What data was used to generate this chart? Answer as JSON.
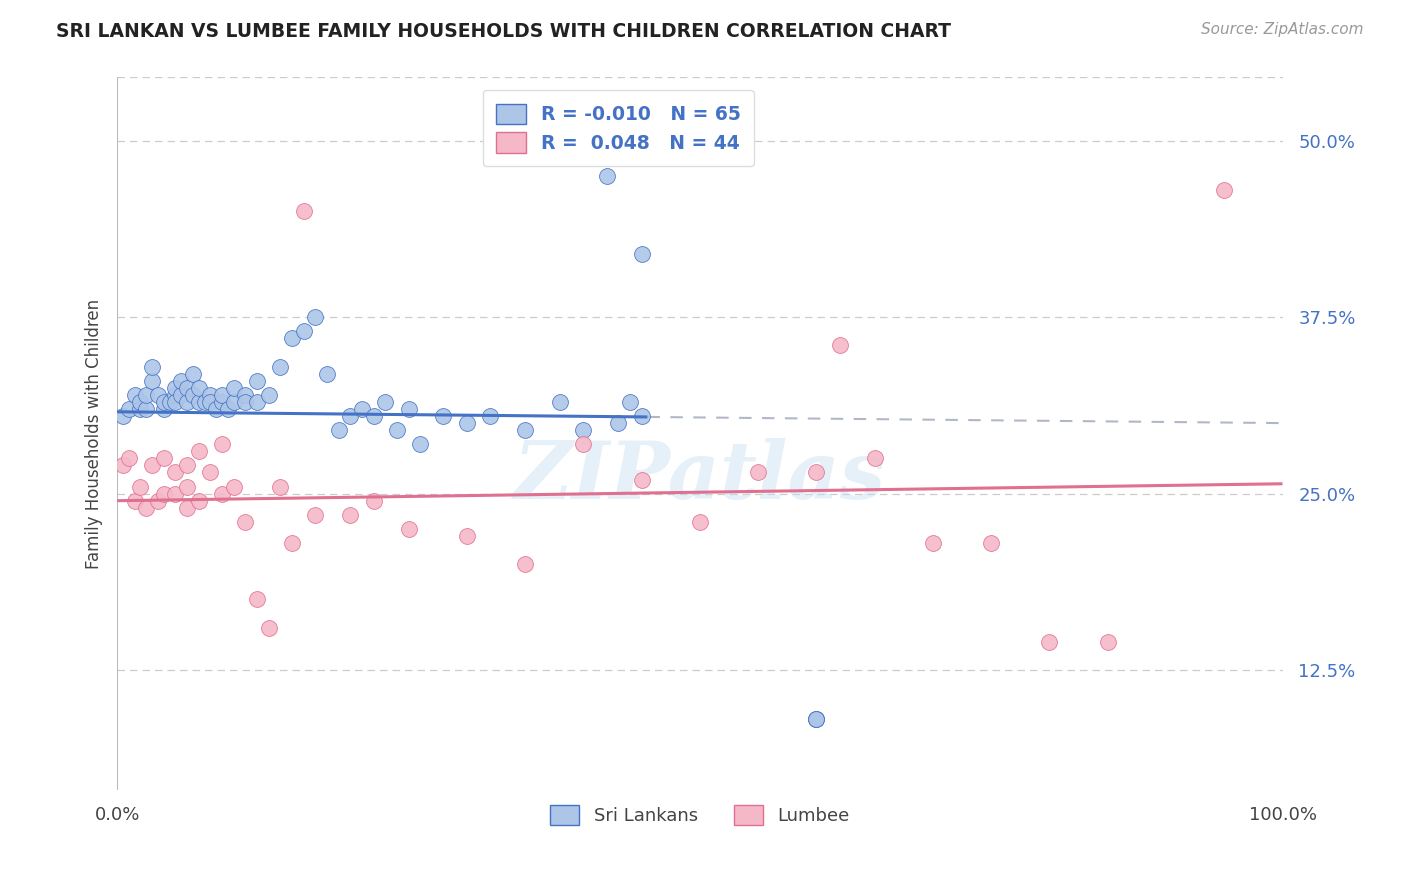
{
  "title": "SRI LANKAN VS LUMBEE FAMILY HOUSEHOLDS WITH CHILDREN CORRELATION CHART",
  "source": "Source: ZipAtlas.com",
  "ylabel": "Family Households with Children",
  "yticks": [
    "12.5%",
    "25.0%",
    "37.5%",
    "50.0%"
  ],
  "ytick_values": [
    0.125,
    0.25,
    0.375,
    0.5
  ],
  "xmin": 0.0,
  "xmax": 1.0,
  "ymin": 0.04,
  "ymax": 0.545,
  "sri_lankan_color": "#adc6e8",
  "lumbee_color": "#f5b8c8",
  "sri_lankan_line_color": "#4472c4",
  "lumbee_line_color": "#e07090",
  "legend_label_sri": "Sri Lankans",
  "legend_label_lumbee": "Lumbee",
  "watermark": "ZIPatlas",
  "sri_lankan_R": -0.01,
  "sri_lankan_N": 65,
  "lumbee_R": 0.048,
  "lumbee_N": 44,
  "sri_lankans_x": [
    0.005,
    0.01,
    0.015,
    0.02,
    0.02,
    0.025,
    0.025,
    0.03,
    0.03,
    0.035,
    0.04,
    0.04,
    0.045,
    0.05,
    0.05,
    0.05,
    0.055,
    0.055,
    0.06,
    0.06,
    0.065,
    0.065,
    0.07,
    0.07,
    0.075,
    0.08,
    0.08,
    0.085,
    0.09,
    0.09,
    0.095,
    0.1,
    0.1,
    0.11,
    0.11,
    0.12,
    0.12,
    0.13,
    0.14,
    0.15,
    0.16,
    0.17,
    0.18,
    0.19,
    0.2,
    0.21,
    0.22,
    0.23,
    0.24,
    0.25,
    0.26,
    0.28,
    0.3,
    0.32,
    0.35,
    0.38,
    0.4,
    0.42,
    0.43,
    0.44,
    0.45,
    0.45,
    0.6,
    0.6,
    0.6
  ],
  "sri_lankans_y": [
    0.305,
    0.31,
    0.32,
    0.31,
    0.315,
    0.31,
    0.32,
    0.33,
    0.34,
    0.32,
    0.31,
    0.315,
    0.315,
    0.32,
    0.325,
    0.315,
    0.32,
    0.33,
    0.315,
    0.325,
    0.335,
    0.32,
    0.315,
    0.325,
    0.315,
    0.32,
    0.315,
    0.31,
    0.315,
    0.32,
    0.31,
    0.315,
    0.325,
    0.32,
    0.315,
    0.33,
    0.315,
    0.32,
    0.34,
    0.36,
    0.365,
    0.375,
    0.335,
    0.295,
    0.305,
    0.31,
    0.305,
    0.315,
    0.295,
    0.31,
    0.285,
    0.305,
    0.3,
    0.305,
    0.295,
    0.315,
    0.295,
    0.475,
    0.3,
    0.315,
    0.305,
    0.42,
    0.09,
    0.09,
    0.09
  ],
  "lumbee_x": [
    0.005,
    0.01,
    0.015,
    0.02,
    0.025,
    0.03,
    0.035,
    0.04,
    0.04,
    0.05,
    0.05,
    0.06,
    0.06,
    0.06,
    0.07,
    0.07,
    0.08,
    0.09,
    0.09,
    0.1,
    0.11,
    0.12,
    0.13,
    0.14,
    0.15,
    0.16,
    0.17,
    0.2,
    0.22,
    0.25,
    0.3,
    0.35,
    0.4,
    0.45,
    0.5,
    0.55,
    0.6,
    0.62,
    0.65,
    0.7,
    0.75,
    0.8,
    0.85,
    0.95
  ],
  "lumbee_y": [
    0.27,
    0.275,
    0.245,
    0.255,
    0.24,
    0.27,
    0.245,
    0.275,
    0.25,
    0.265,
    0.25,
    0.27,
    0.255,
    0.24,
    0.28,
    0.245,
    0.265,
    0.285,
    0.25,
    0.255,
    0.23,
    0.175,
    0.155,
    0.255,
    0.215,
    0.45,
    0.235,
    0.235,
    0.245,
    0.225,
    0.22,
    0.2,
    0.285,
    0.26,
    0.23,
    0.265,
    0.265,
    0.355,
    0.275,
    0.215,
    0.215,
    0.145,
    0.145,
    0.465
  ]
}
